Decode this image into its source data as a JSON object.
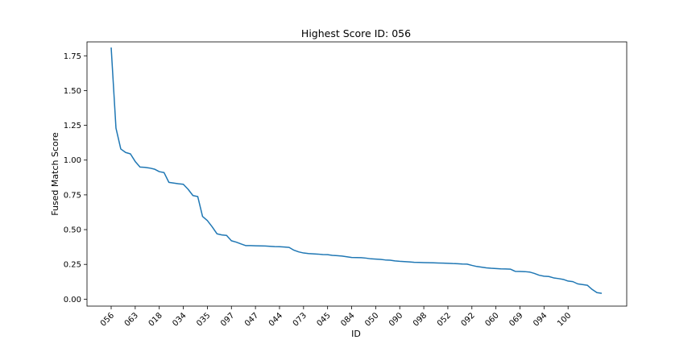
{
  "chart_data": {
    "type": "line",
    "title": "Highest Score ID: 056",
    "xlabel": "ID",
    "ylabel": "Fused Match Score",
    "ylim": [
      -0.05,
      1.85
    ],
    "yticks": [
      0.0,
      0.25,
      0.5,
      0.75,
      1.0,
      1.25,
      1.5,
      1.75
    ],
    "ytick_labels": [
      "0.00",
      "0.25",
      "0.50",
      "0.75",
      "1.00",
      "1.25",
      "1.50",
      "1.75"
    ],
    "xtick_labels": [
      "056",
      "063",
      "018",
      "034",
      "035",
      "097",
      "047",
      "044",
      "073",
      "045",
      "084",
      "050",
      "090",
      "098",
      "052",
      "092",
      "060",
      "069",
      "094",
      "100"
    ],
    "xtick_every": 5,
    "grid": false,
    "line_color": "#1f77b4",
    "series": [
      {
        "values": [
          1.81,
          1.23,
          1.08,
          1.055,
          1.045,
          0.99,
          0.95,
          0.948,
          0.943,
          0.935,
          0.917,
          0.91,
          0.84,
          0.835,
          0.83,
          0.826,
          0.79,
          0.745,
          0.738,
          0.595,
          0.565,
          0.52,
          0.47,
          0.462,
          0.458,
          0.42,
          0.41,
          0.397,
          0.385,
          0.385,
          0.384,
          0.383,
          0.382,
          0.38,
          0.378,
          0.377,
          0.375,
          0.372,
          0.352,
          0.34,
          0.332,
          0.328,
          0.326,
          0.324,
          0.321,
          0.32,
          0.315,
          0.313,
          0.31,
          0.305,
          0.3,
          0.299,
          0.298,
          0.295,
          0.29,
          0.288,
          0.286,
          0.282,
          0.28,
          0.275,
          0.272,
          0.27,
          0.268,
          0.265,
          0.264,
          0.263,
          0.262,
          0.261,
          0.26,
          0.259,
          0.258,
          0.256,
          0.255,
          0.253,
          0.252,
          0.243,
          0.235,
          0.23,
          0.225,
          0.222,
          0.22,
          0.218,
          0.217,
          0.216,
          0.2,
          0.199,
          0.198,
          0.195,
          0.185,
          0.172,
          0.165,
          0.163,
          0.153,
          0.148,
          0.142,
          0.13,
          0.126,
          0.11,
          0.105,
          0.1,
          0.07,
          0.047,
          0.042
        ]
      }
    ]
  }
}
